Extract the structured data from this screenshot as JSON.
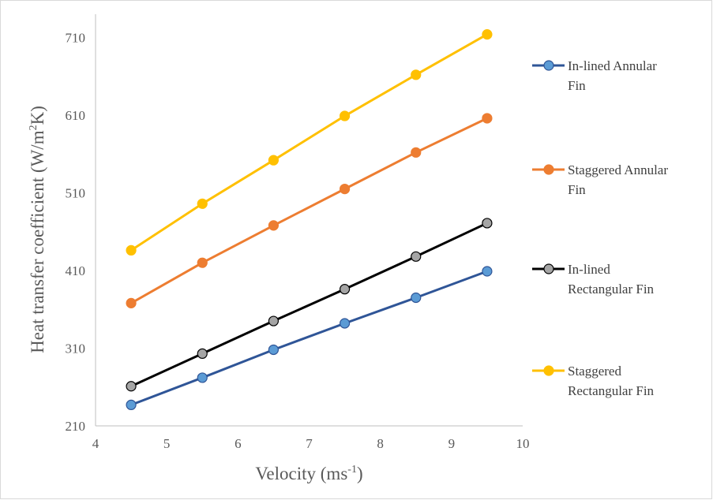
{
  "chart_data": {
    "type": "line",
    "title": "",
    "xlabel": "Velocity (ms",
    "xlabel_sup": "-1",
    "xlabel_end": ")",
    "ylabel": "Heat transfer coefficient (W/m",
    "ylabel_sup": "2",
    "ylabel_end": "K)",
    "xlim": [
      4,
      10
    ],
    "ylim": [
      210,
      740
    ],
    "x_ticks": [
      "4",
      "5",
      "6",
      "7",
      "8",
      "9",
      "10"
    ],
    "y_ticks": [
      "210",
      "310",
      "410",
      "510",
      "610",
      "710"
    ],
    "x": [
      4.5,
      5.5,
      6.5,
      7.5,
      8.5,
      9.5
    ],
    "grid": false,
    "legend_position": "right",
    "series": [
      {
        "legend_lines": [
          "In-lined Annular",
          "Fin"
        ],
        "line_color": "#2f5597",
        "marker_fill": "#5b9bd5",
        "marker_stroke": "#2f5597",
        "values": [
          237,
          272,
          308,
          342,
          375,
          409
        ]
      },
      {
        "legend_lines": [
          "Staggered Annular",
          "Fin"
        ],
        "line_color": "#ed7d31",
        "marker_fill": "#ed7d31",
        "marker_stroke": "#ed7d31",
        "values": [
          368,
          420,
          468,
          515,
          562,
          606
        ]
      },
      {
        "legend_lines": [
          "In-lined",
          "Rectangular Fin"
        ],
        "line_color": "#000000",
        "marker_fill": "#a5a5a5",
        "marker_stroke": "#000000",
        "values": [
          261,
          303,
          345,
          386,
          428,
          471
        ]
      },
      {
        "legend_lines": [
          "Staggered",
          "Rectangular Fin"
        ],
        "line_color": "#ffc000",
        "marker_fill": "#ffc000",
        "marker_stroke": "#ffc000",
        "values": [
          436,
          496,
          552,
          609,
          662,
          714
        ]
      }
    ]
  }
}
